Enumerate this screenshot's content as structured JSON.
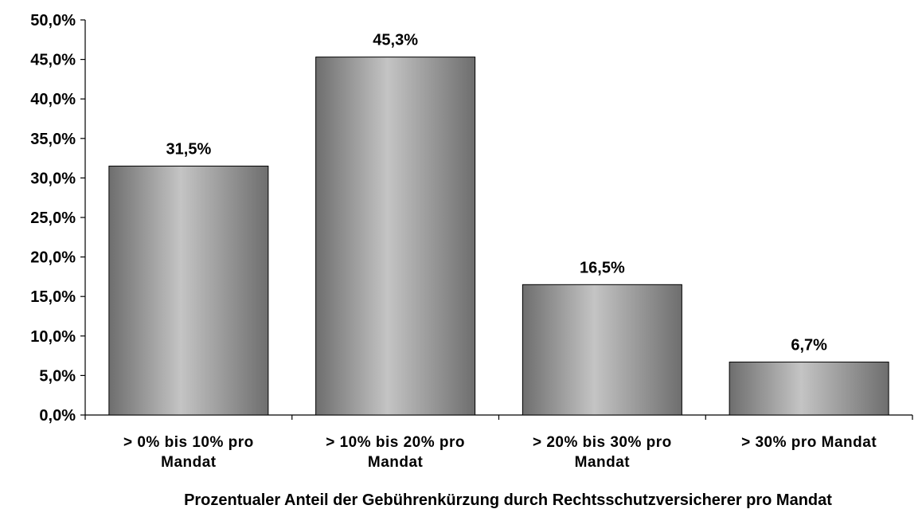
{
  "chart_data": {
    "type": "bar",
    "categories": [
      [
        "> 0% bis 10% pro",
        "Mandat"
      ],
      [
        "> 10% bis 20% pro",
        "Mandat"
      ],
      [
        "> 20% bis 30% pro",
        "Mandat"
      ],
      [
        "> 30% pro Mandat"
      ]
    ],
    "values": [
      31.5,
      45.3,
      16.5,
      6.7
    ],
    "data_labels": [
      "31,5%",
      "45,3%",
      "16,5%",
      "6,7%"
    ],
    "xlabel": "Prozentualer Anteil der Gebührenkürzung durch Rechtsschutzversicherer pro Mandat",
    "ylabel": "",
    "ylim": [
      0,
      50
    ],
    "yticks": [
      0,
      5,
      10,
      15,
      20,
      25,
      30,
      35,
      40,
      45,
      50
    ],
    "ytick_labels": [
      "0,0%",
      "5,0%",
      "10,0%",
      "15,0%",
      "20,0%",
      "25,0%",
      "30,0%",
      "35,0%",
      "40,0%",
      "45,0%",
      "50,0%"
    ],
    "grid": false,
    "legend": "none",
    "bar_colors": {
      "edge": "#6e6e6e",
      "center": "#c4c4c4"
    }
  }
}
